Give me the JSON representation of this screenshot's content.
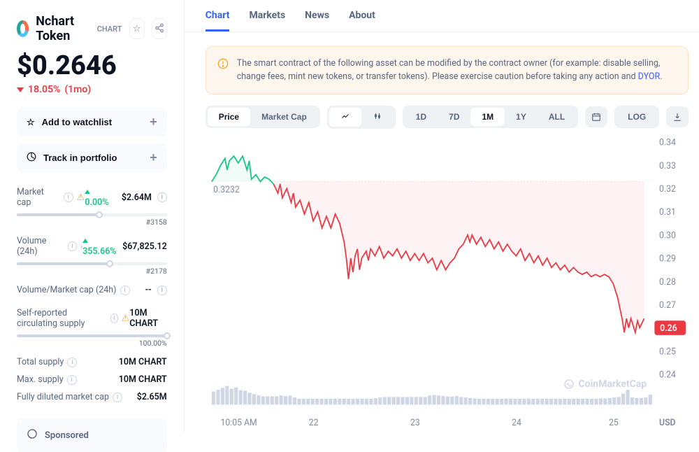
{
  "header": {
    "token_name": "Nchart Token",
    "symbol_tag": "CHART",
    "price": "$0.2646",
    "change_pct": "18.05%",
    "change_period": "(1mo)",
    "change_direction": "down"
  },
  "actions": {
    "watchlist": "Add to watchlist",
    "portfolio": "Track in portfolio"
  },
  "stats": {
    "market_cap": {
      "label": "Market cap",
      "pct": "0.00%",
      "value": "$2.64M",
      "rank": "#3158",
      "slider_pct": 55
    },
    "volume": {
      "label": "Volume (24h)",
      "pct": "355.66%",
      "value": "$67,825.12",
      "rank": "#2178",
      "slider_pct": 62
    },
    "vol_mcap": {
      "label": "Volume/Market cap (24h)",
      "value": "--"
    },
    "circ": {
      "label": "Self-reported circulating supply",
      "value": "10M CHART",
      "pct_label": "100.00%",
      "slider_pct": 100
    },
    "total": {
      "label": "Total supply",
      "value": "10M CHART"
    },
    "max": {
      "label": "Max. supply",
      "value": "10M CHART"
    },
    "fdv": {
      "label": "Fully diluted market cap",
      "value": "$2.65M"
    }
  },
  "sponsored": "Sponsored",
  "tabs": [
    "Chart",
    "Markets",
    "News",
    "About"
  ],
  "active_tab": 0,
  "warning": {
    "text": "The smart contract of the following asset can be modified by the contract owner (for example: disable selling, change fees, mint new tokens, or transfer tokens). Please exercise caution before taking any action and ",
    "link": "DYOR"
  },
  "toolbar": {
    "view_options": [
      "Price",
      "Market Cap"
    ],
    "view_active": 0,
    "ranges": [
      "1D",
      "7D",
      "1M",
      "1Y",
      "ALL"
    ],
    "range_active": 2,
    "log_label": "LOG"
  },
  "chart": {
    "type": "line",
    "y_label": "USD",
    "ylim": [
      0.24,
      0.34
    ],
    "yticks": [
      0.24,
      0.25,
      0.26,
      0.27,
      0.28,
      0.29,
      0.3,
      0.31,
      0.32,
      0.33,
      0.34
    ],
    "xticks": [
      "10:05 AM",
      "22",
      "23",
      "24",
      "25"
    ],
    "xtick_positions": [
      0.02,
      0.22,
      0.45,
      0.68,
      0.9
    ],
    "open_value": 0.3232,
    "open_label": "0.3232",
    "current_value": 0.26,
    "current_label": "0.26",
    "colors": {
      "up": "#16c784",
      "down": "#ea3943",
      "grid": "#eff2f5",
      "axis_text": "#808a9d",
      "volume_bar": "#cfd6e4",
      "fill_down": "rgba(234,57,67,0.06)",
      "fill_up": "rgba(22,199,132,0.06)",
      "background": "#ffffff"
    },
    "split_x": 0.14,
    "series_up": [
      [
        0.0,
        0.323
      ],
      [
        0.01,
        0.326
      ],
      [
        0.02,
        0.33
      ],
      [
        0.03,
        0.333
      ],
      [
        0.035,
        0.328
      ],
      [
        0.04,
        0.332
      ],
      [
        0.05,
        0.334
      ],
      [
        0.06,
        0.331
      ],
      [
        0.07,
        0.334
      ],
      [
        0.08,
        0.328
      ],
      [
        0.085,
        0.332
      ],
      [
        0.09,
        0.324
      ],
      [
        0.1,
        0.326
      ],
      [
        0.11,
        0.323
      ],
      [
        0.12,
        0.325
      ],
      [
        0.13,
        0.324
      ],
      [
        0.14,
        0.322
      ]
    ],
    "series_down": [
      [
        0.14,
        0.322
      ],
      [
        0.15,
        0.318
      ],
      [
        0.155,
        0.322
      ],
      [
        0.16,
        0.316
      ],
      [
        0.17,
        0.32
      ],
      [
        0.18,
        0.314
      ],
      [
        0.185,
        0.318
      ],
      [
        0.19,
        0.312
      ],
      [
        0.2,
        0.315
      ],
      [
        0.21,
        0.309
      ],
      [
        0.22,
        0.314
      ],
      [
        0.23,
        0.306
      ],
      [
        0.24,
        0.31
      ],
      [
        0.25,
        0.303
      ],
      [
        0.26,
        0.308
      ],
      [
        0.27,
        0.303
      ],
      [
        0.28,
        0.309
      ],
      [
        0.29,
        0.305
      ],
      [
        0.3,
        0.297
      ],
      [
        0.305,
        0.29
      ],
      [
        0.31,
        0.281
      ],
      [
        0.315,
        0.29
      ],
      [
        0.32,
        0.284
      ],
      [
        0.325,
        0.291
      ],
      [
        0.33,
        0.294
      ],
      [
        0.335,
        0.285
      ],
      [
        0.34,
        0.29
      ],
      [
        0.35,
        0.293
      ],
      [
        0.355,
        0.289
      ],
      [
        0.36,
        0.294
      ],
      [
        0.37,
        0.291
      ],
      [
        0.38,
        0.295
      ],
      [
        0.39,
        0.29
      ],
      [
        0.4,
        0.293
      ],
      [
        0.41,
        0.291
      ],
      [
        0.42,
        0.294
      ],
      [
        0.43,
        0.29
      ],
      [
        0.44,
        0.293
      ],
      [
        0.45,
        0.289
      ],
      [
        0.46,
        0.292
      ],
      [
        0.47,
        0.289
      ],
      [
        0.48,
        0.292
      ],
      [
        0.49,
        0.288
      ],
      [
        0.5,
        0.29
      ],
      [
        0.51,
        0.285
      ],
      [
        0.52,
        0.289
      ],
      [
        0.53,
        0.285
      ],
      [
        0.54,
        0.288
      ],
      [
        0.55,
        0.29
      ],
      [
        0.56,
        0.294
      ],
      [
        0.57,
        0.296
      ],
      [
        0.58,
        0.3
      ],
      [
        0.585,
        0.297
      ],
      [
        0.59,
        0.3
      ],
      [
        0.6,
        0.296
      ],
      [
        0.61,
        0.299
      ],
      [
        0.62,
        0.295
      ],
      [
        0.63,
        0.298
      ],
      [
        0.64,
        0.294
      ],
      [
        0.65,
        0.297
      ],
      [
        0.66,
        0.293
      ],
      [
        0.67,
        0.296
      ],
      [
        0.68,
        0.293
      ],
      [
        0.69,
        0.291
      ],
      [
        0.7,
        0.294
      ],
      [
        0.71,
        0.289
      ],
      [
        0.72,
        0.292
      ],
      [
        0.73,
        0.288
      ],
      [
        0.74,
        0.291
      ],
      [
        0.75,
        0.287
      ],
      [
        0.76,
        0.29
      ],
      [
        0.77,
        0.286
      ],
      [
        0.78,
        0.288
      ],
      [
        0.79,
        0.285
      ],
      [
        0.8,
        0.287
      ],
      [
        0.81,
        0.284
      ],
      [
        0.82,
        0.286
      ],
      [
        0.83,
        0.284
      ],
      [
        0.84,
        0.283
      ],
      [
        0.85,
        0.284
      ],
      [
        0.86,
        0.282
      ],
      [
        0.87,
        0.283
      ],
      [
        0.88,
        0.282
      ],
      [
        0.89,
        0.283
      ],
      [
        0.9,
        0.282
      ],
      [
        0.91,
        0.279
      ],
      [
        0.92,
        0.273
      ],
      [
        0.93,
        0.264
      ],
      [
        0.935,
        0.258
      ],
      [
        0.94,
        0.264
      ],
      [
        0.945,
        0.26
      ],
      [
        0.95,
        0.264
      ],
      [
        0.96,
        0.258
      ],
      [
        0.965,
        0.263
      ],
      [
        0.97,
        0.26
      ],
      [
        0.98,
        0.264
      ]
    ],
    "volume_max": 1.0,
    "volume": [
      0.55,
      0.62,
      0.7,
      0.78,
      0.66,
      0.72,
      0.6,
      0.58,
      0.5,
      0.44,
      0.4,
      0.35,
      0.35,
      0.35,
      0.35,
      0.38,
      0.36,
      0.38,
      0.3,
      0.25,
      0.25,
      0.25,
      0.25,
      0.25,
      0.25,
      0.25,
      0.25,
      0.25,
      0.25,
      0.25,
      0.25,
      0.25,
      0.25,
      0.25,
      0.25,
      0.25,
      0.27,
      0.3,
      0.32,
      0.32,
      0.32,
      0.32,
      0.32,
      0.32,
      0.32,
      0.32,
      0.32,
      0.32,
      0.38,
      0.4,
      0.38,
      0.36,
      0.34,
      0.34,
      0.36,
      0.32,
      0.3,
      0.28,
      0.26,
      0.25,
      0.25,
      0.25,
      0.25,
      0.25,
      0.25,
      0.25,
      0.25,
      0.25,
      0.25,
      0.25,
      0.25,
      0.25,
      0.25,
      0.25,
      0.25,
      0.25,
      0.25,
      0.25,
      0.25,
      0.25,
      0.25,
      0.25,
      0.25,
      0.25,
      0.25,
      0.25,
      0.26,
      0.26,
      0.28,
      0.3,
      0.32,
      0.46,
      0.62,
      0.3,
      0.28,
      0.28,
      0.3,
      0.42
    ]
  },
  "watermark": "CoinMarketCap"
}
